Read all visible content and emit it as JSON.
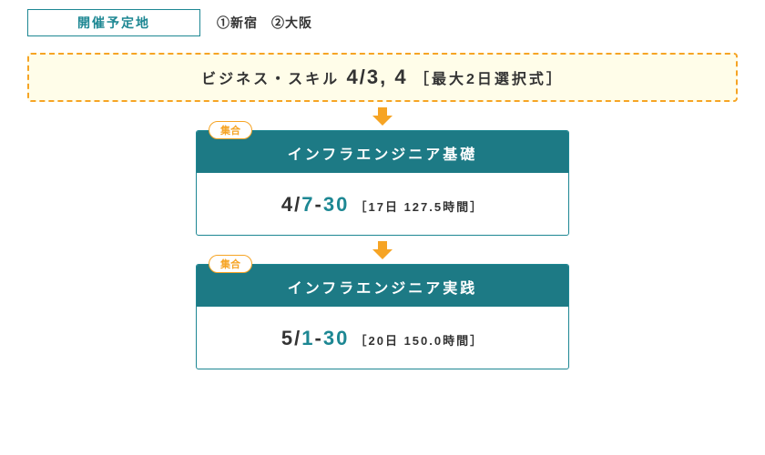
{
  "colors": {
    "teal": "#1d8793",
    "teal_deep": "#1d7a85",
    "cream_bg": "#fffde9",
    "orange": "#f6a424",
    "text": "#333333"
  },
  "location": {
    "label": "開催予定地",
    "text": "①新宿　②大阪"
  },
  "business_skill": {
    "prefix": "ビジネス・スキル",
    "dates": "4/3, 4",
    "suffix": "［最大2日選択式］"
  },
  "cards": [
    {
      "tag": "集合",
      "title": "インフラエンジニア基礎",
      "month": "4",
      "slash": "/",
      "day_start": "7",
      "dash": "-",
      "day_end": "30",
      "meta": "［17日  127.5時間］"
    },
    {
      "tag": "集合",
      "title": "インフラエンジニア実践",
      "month": "5",
      "slash": "/",
      "day_start": "1",
      "dash": "-",
      "day_end": "30",
      "meta": "［20日 150.0時間］"
    }
  ]
}
